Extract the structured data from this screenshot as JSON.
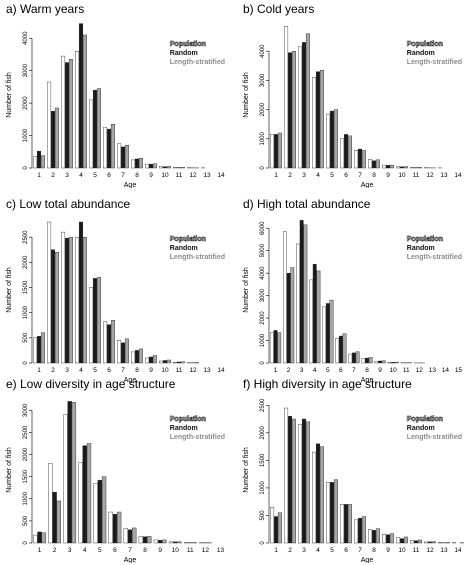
{
  "legend": {
    "population": "Population",
    "random": "Random",
    "length_stratified": "Length-stratified"
  },
  "colors": {
    "population": "#ffffff",
    "random": "#1a1a1a",
    "length_stratified": "#a6a6a6",
    "stroke": "#222222"
  },
  "chart_data": [
    {
      "type": "bar",
      "title": "a) Warm years",
      "xlabel": "Age",
      "ylabel": "Number of fish",
      "categories": [
        "1",
        "2",
        "3",
        "4",
        "5",
        "6",
        "7",
        "8",
        "9",
        "10",
        "11",
        "12",
        "13",
        "14"
      ],
      "ylim": [
        0,
        4500
      ],
      "yticks": [
        0,
        1000,
        2000,
        3000,
        4000
      ],
      "series": [
        {
          "name": "Population",
          "values": [
            350,
            2650,
            3450,
            3600,
            2100,
            1250,
            750,
            250,
            120,
            50,
            20,
            10,
            5,
            0
          ]
        },
        {
          "name": "Random",
          "values": [
            520,
            1750,
            3250,
            4450,
            2400,
            1200,
            650,
            280,
            120,
            40,
            15,
            5,
            0,
            0
          ]
        },
        {
          "name": "Length-stratified",
          "values": [
            380,
            1850,
            3350,
            4100,
            2450,
            1350,
            700,
            300,
            130,
            50,
            20,
            5,
            0,
            0
          ]
        }
      ]
    },
    {
      "type": "bar",
      "title": "b) Cold years",
      "xlabel": "Age",
      "ylabel": "Number of fish",
      "categories": [
        "1",
        "2",
        "3",
        "4",
        "5",
        "6",
        "7",
        "8",
        "9",
        "10",
        "11",
        "12",
        "13",
        "14"
      ],
      "ylim": [
        0,
        5000
      ],
      "yticks": [
        0,
        1000,
        2000,
        3000,
        4000
      ],
      "series": [
        {
          "name": "Population",
          "values": [
            1150,
            4850,
            4150,
            3100,
            1850,
            1000,
            600,
            300,
            100,
            50,
            20,
            10,
            5,
            0
          ]
        },
        {
          "name": "Random",
          "values": [
            1150,
            3950,
            4300,
            3300,
            1950,
            1150,
            650,
            250,
            90,
            40,
            15,
            5,
            0,
            0
          ]
        },
        {
          "name": "Length-stratified",
          "values": [
            1200,
            4000,
            4600,
            3350,
            2000,
            1100,
            600,
            280,
            100,
            50,
            20,
            5,
            0,
            0
          ]
        }
      ]
    },
    {
      "type": "bar",
      "title": "c) Low total abundance",
      "xlabel": "Age",
      "ylabel": "Number of fish",
      "categories": [
        "1",
        "2",
        "3",
        "4",
        "5",
        "6",
        "7",
        "8",
        "9",
        "10",
        "11",
        "12",
        "13",
        "14"
      ],
      "ylim": [
        0,
        2900
      ],
      "yticks": [
        0,
        500,
        1000,
        1500,
        2000,
        2500
      ],
      "series": [
        {
          "name": "Population",
          "values": [
            500,
            2800,
            2600,
            2500,
            1500,
            820,
            450,
            220,
            100,
            40,
            15,
            5,
            0,
            0
          ]
        },
        {
          "name": "Random",
          "values": [
            530,
            2250,
            2480,
            2800,
            1680,
            760,
            400,
            250,
            120,
            50,
            20,
            5,
            0,
            0
          ]
        },
        {
          "name": "Length-stratified",
          "values": [
            600,
            2200,
            2500,
            2500,
            1700,
            850,
            480,
            280,
            150,
            60,
            25,
            10,
            0,
            0
          ]
        }
      ]
    },
    {
      "type": "bar",
      "title": "d) High total abundance",
      "xlabel": "Age",
      "ylabel": "Number of fish",
      "categories": [
        "1",
        "2",
        "3",
        "4",
        "5",
        "6",
        "7",
        "8",
        "9",
        "10",
        "11",
        "12",
        "13",
        "14",
        "15"
      ],
      "ylim": [
        0,
        6500
      ],
      "yticks": [
        0,
        1000,
        2000,
        3000,
        4000,
        5000,
        6000
      ],
      "series": [
        {
          "name": "Population",
          "values": [
            1350,
            5850,
            5300,
            3700,
            2500,
            1100,
            400,
            200,
            80,
            30,
            10,
            5,
            0,
            0,
            0
          ]
        },
        {
          "name": "Random",
          "values": [
            1450,
            4000,
            6350,
            4400,
            2650,
            1200,
            450,
            220,
            90,
            35,
            10,
            5,
            0,
            0,
            0
          ]
        },
        {
          "name": "Length-stratified",
          "values": [
            1350,
            4250,
            6150,
            4100,
            2800,
            1300,
            500,
            250,
            100,
            40,
            15,
            5,
            0,
            0,
            0
          ]
        }
      ]
    },
    {
      "type": "bar",
      "title": "e) Low diversity in age structure",
      "xlabel": "Age",
      "ylabel": "Number of fish",
      "categories": [
        "1",
        "2",
        "3",
        "4",
        "5",
        "6",
        "7",
        "8",
        "9",
        "10",
        "11",
        "12",
        "13"
      ],
      "ylim": [
        0,
        3300
      ],
      "yticks": [
        0,
        500,
        1000,
        1500,
        2000,
        2500,
        3000
      ],
      "series": [
        {
          "name": "Population",
          "values": [
            180,
            1800,
            2900,
            1820,
            1350,
            700,
            330,
            150,
            70,
            30,
            10,
            5,
            0
          ]
        },
        {
          "name": "Random",
          "values": [
            250,
            1150,
            3200,
            2200,
            1420,
            650,
            300,
            140,
            60,
            25,
            10,
            5,
            0
          ]
        },
        {
          "name": "Length-stratified",
          "values": [
            230,
            950,
            3180,
            2250,
            1500,
            700,
            340,
            150,
            70,
            30,
            10,
            5,
            0
          ]
        }
      ]
    },
    {
      "type": "bar",
      "title": "f) High diversity in age structure",
      "xlabel": "Age",
      "ylabel": "Number of fish",
      "categories": [
        "1",
        "2",
        "3",
        "4",
        "5",
        "6",
        "7",
        "8",
        "9",
        "10",
        "11",
        "12",
        "13",
        "14"
      ],
      "ylim": [
        0,
        2650
      ],
      "yticks": [
        0,
        500,
        1000,
        1500,
        2000,
        2500
      ],
      "series": [
        {
          "name": "Population",
          "values": [
            650,
            2450,
            2150,
            1650,
            1100,
            700,
            420,
            250,
            160,
            100,
            50,
            20,
            10,
            5
          ]
        },
        {
          "name": "Random",
          "values": [
            480,
            2300,
            2250,
            1800,
            1100,
            700,
            450,
            230,
            150,
            80,
            40,
            20,
            5,
            0
          ]
        },
        {
          "name": "Length-stratified",
          "values": [
            550,
            2250,
            2200,
            1750,
            1150,
            700,
            480,
            260,
            170,
            110,
            55,
            25,
            10,
            5
          ]
        }
      ]
    }
  ]
}
